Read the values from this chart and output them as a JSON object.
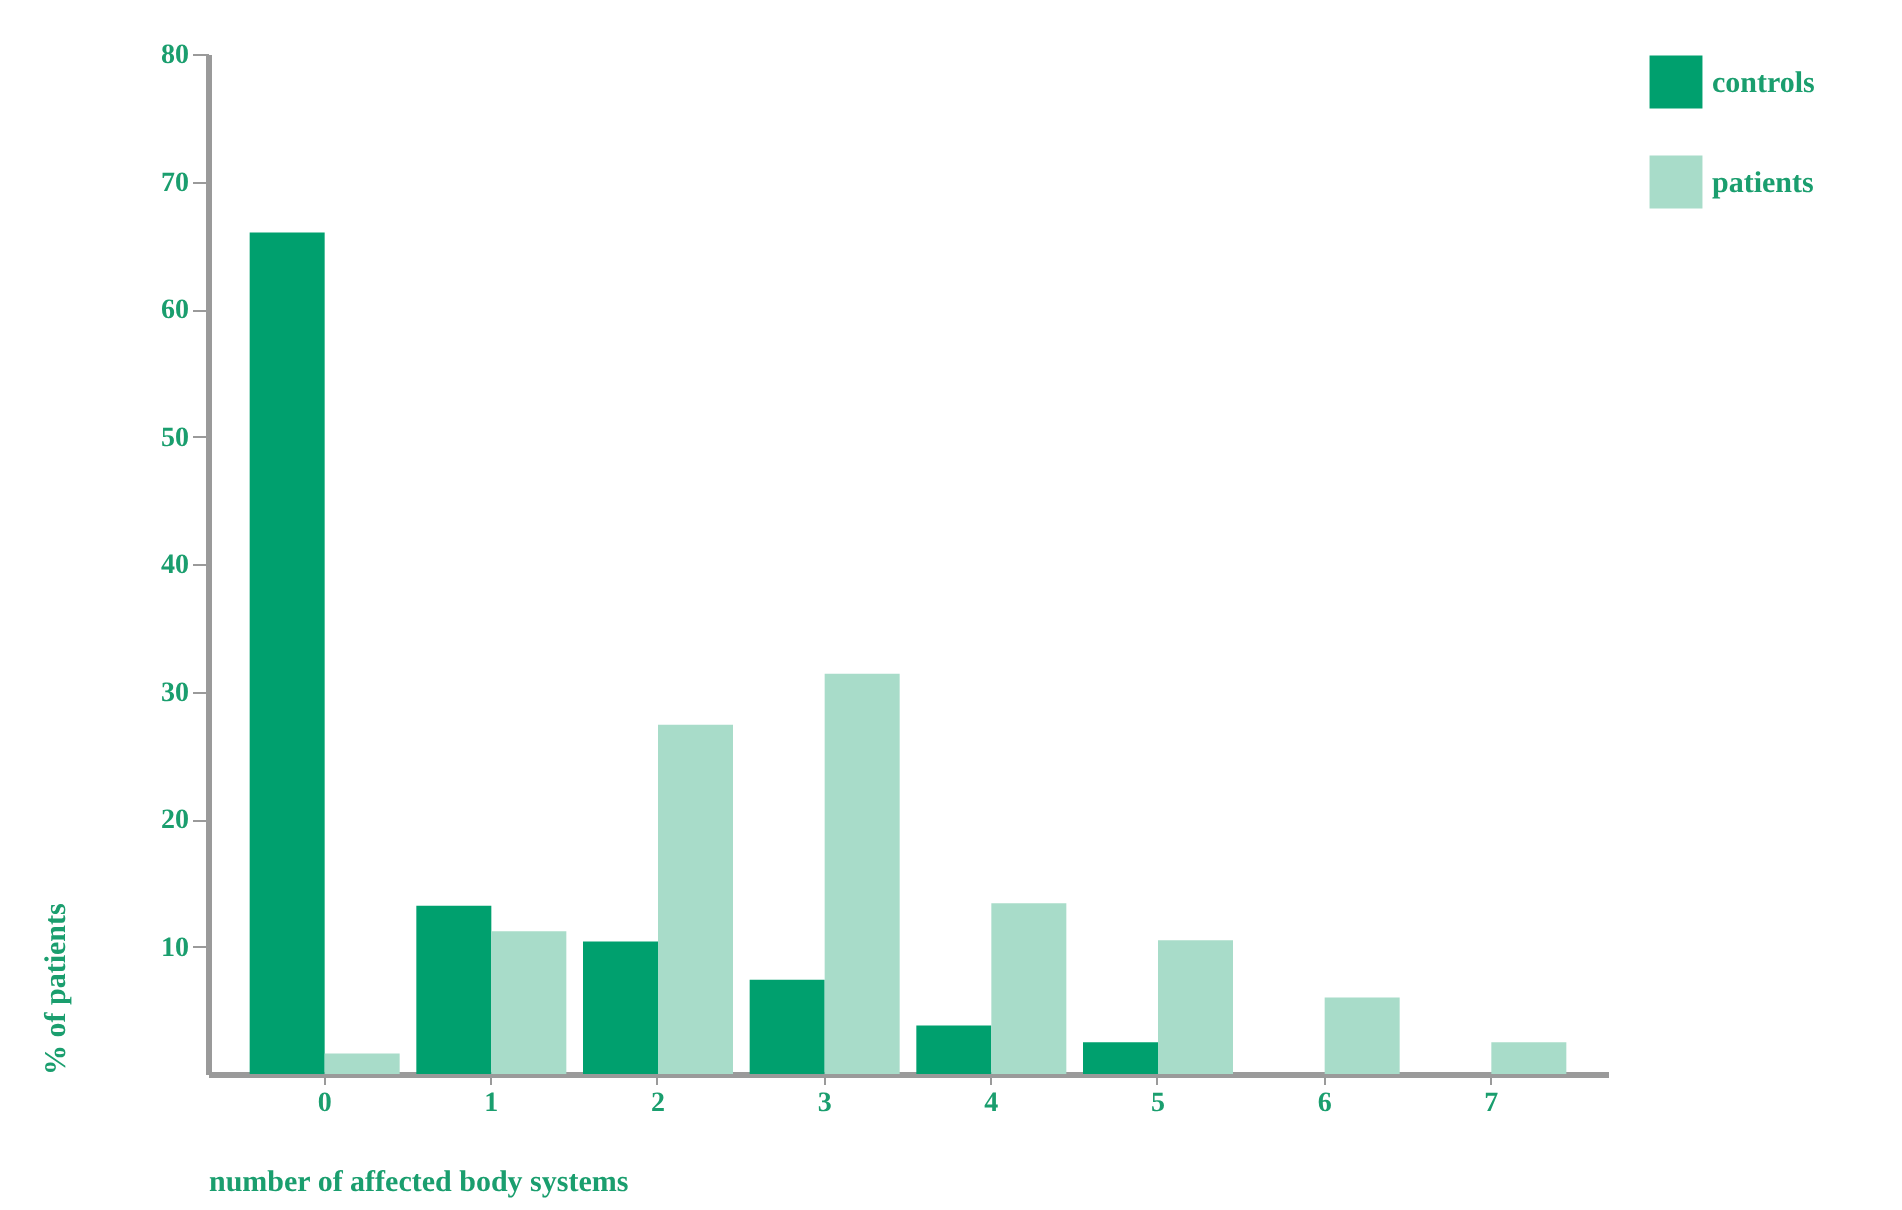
{
  "chart_data": {
    "type": "bar",
    "xlabel": "number of affected body systems",
    "ylabel": "% of patients",
    "categories": [
      "0",
      "1",
      "2",
      "3",
      "4",
      "5",
      "6",
      "7"
    ],
    "series": [
      {
        "name": "controls",
        "color": "#00a06e",
        "values": [
          66,
          13.2,
          10.4,
          7.4,
          3.8,
          2.5,
          null,
          null
        ]
      },
      {
        "name": "patients",
        "color": "#a8dcc9",
        "values": [
          1.6,
          11.2,
          27.4,
          31.4,
          13.4,
          10.5,
          6,
          2.5
        ]
      }
    ],
    "ylim": [
      0,
      80
    ],
    "yticks": [
      10,
      20,
      30,
      40,
      50,
      60,
      70,
      80
    ],
    "grid": false,
    "legend": "top right"
  }
}
